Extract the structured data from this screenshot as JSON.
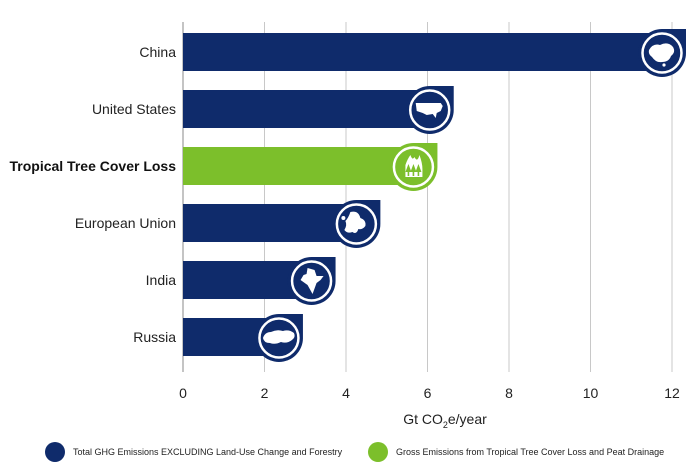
{
  "chart_data": {
    "type": "bar",
    "orientation": "horizontal",
    "categories": [
      "China",
      "United States",
      "Tropical Tree Cover Loss",
      "European Union",
      "India",
      "Russia"
    ],
    "values": [
      12.0,
      6.3,
      5.9,
      4.5,
      3.4,
      2.6
    ],
    "highlight_category": "Tropical Tree Cover Loss",
    "icons": [
      "china-map-icon",
      "usa-map-icon",
      "forest-fire-icon",
      "eu-map-icon",
      "india-map-icon",
      "russia-map-icon"
    ],
    "xlabel_main": "Gt CO",
    "xlabel_sub": "2",
    "xlabel_tail": "e/year",
    "xlim": [
      0,
      12.5
    ],
    "xticks": [
      "0",
      "2",
      "4",
      "6",
      "8",
      "10",
      "12"
    ],
    "grid": true,
    "legend_placement": "bottom",
    "legend": [
      {
        "label": "Total GHG Emissions EXCLUDING Land-Use Change and Forestry",
        "color": "#0f2b6b"
      },
      {
        "label": "Gross Emissions from Tropical Tree Cover Loss and Peat Drainage",
        "color": "#7cbf2b"
      }
    ],
    "colors": {
      "primary": "#0f2b6b",
      "highlight": "#7cbf2b",
      "grid": "#c8c8c8"
    }
  }
}
